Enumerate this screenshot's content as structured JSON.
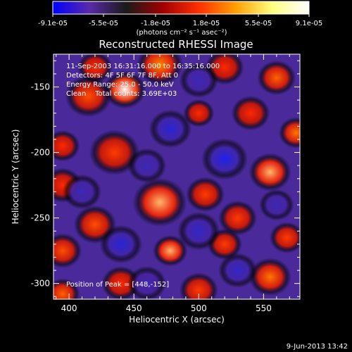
{
  "chart_data": {
    "type": "heatmap",
    "title": "Reconstructed RHESSI Image",
    "xlabel": "Heliocentric X (arcsec)",
    "ylabel": "Heliocentric Y (arcsec)",
    "xlim": [
      388,
      578
    ],
    "ylim": [
      -312,
      -125
    ],
    "x_ticks": [
      400,
      450,
      500,
      550
    ],
    "x_tick_labels": [
      "400",
      "450",
      "500",
      "550"
    ],
    "y_ticks": [
      -150,
      -200,
      -250,
      -300
    ],
    "y_tick_labels": [
      "-150",
      "-200",
      "-250",
      "-300"
    ],
    "colorbar": {
      "min": -9.1e-05,
      "max": 9.1e-05,
      "tick_labels": [
        "-9.1e-05",
        "-5.5e-05",
        "-1.8e-05",
        "1.8e-05",
        "5.5e-05",
        "9.1e-05"
      ],
      "tick_values": [
        -9.1e-05,
        -5.5e-05,
        -1.8e-05,
        1.8e-05,
        5.5e-05,
        9.1e-05
      ],
      "units_label": "(photons cm⁻² s⁻¹ asec⁻²)",
      "stops": [
        "#0000ff",
        "#5a2aa8",
        "#1a1a1a",
        "#a00000",
        "#ff3000",
        "#ffa000",
        "#ffff80",
        "#ffffff"
      ]
    },
    "annotations": {
      "time_range": "11-Sep-2003 16:31:16.000 to 16:35:16.000",
      "detectors": "Detectors: 4F 5F 6F 7F 8F, Att 0",
      "energy": "Energy Range: 25.0 - 50.0 keV",
      "clean": "Clean    Total counts: 3.69E+03",
      "peak": "Position of Peak = [448,-152]"
    },
    "peak": {
      "x": 448,
      "y": -152
    },
    "blobs": [
      {
        "x": 443,
        "y": -152,
        "v": 1.0,
        "s": 11
      },
      {
        "x": 415,
        "y": -157,
        "v": 0.6,
        "s": 12
      },
      {
        "x": 420,
        "y": -135,
        "v": 0.5,
        "s": 9
      },
      {
        "x": 470,
        "y": -133,
        "v": 0.75,
        "s": 12
      },
      {
        "x": 520,
        "y": -135,
        "v": 0.5,
        "s": 10
      },
      {
        "x": 560,
        "y": -143,
        "v": 0.65,
        "s": 10
      },
      {
        "x": 540,
        "y": -170,
        "v": 0.5,
        "s": 10
      },
      {
        "x": 575,
        "y": -185,
        "v": 0.7,
        "s": 9
      },
      {
        "x": 500,
        "y": -170,
        "v": 0.5,
        "s": 8
      },
      {
        "x": 435,
        "y": -200,
        "v": 0.55,
        "s": 13
      },
      {
        "x": 395,
        "y": -195,
        "v": 0.5,
        "s": 9
      },
      {
        "x": 555,
        "y": -215,
        "v": 0.85,
        "s": 11
      },
      {
        "x": 470,
        "y": -238,
        "v": 0.85,
        "s": 14
      },
      {
        "x": 505,
        "y": -232,
        "v": 0.55,
        "s": 10
      },
      {
        "x": 530,
        "y": -250,
        "v": 0.55,
        "s": 10
      },
      {
        "x": 568,
        "y": -265,
        "v": 0.55,
        "s": 9
      },
      {
        "x": 395,
        "y": -225,
        "v": 0.5,
        "s": 10
      },
      {
        "x": 420,
        "y": -255,
        "v": 0.6,
        "s": 11
      },
      {
        "x": 478,
        "y": -275,
        "v": 0.85,
        "s": 9
      },
      {
        "x": 520,
        "y": -270,
        "v": 0.55,
        "s": 9
      },
      {
        "x": 555,
        "y": -295,
        "v": 0.7,
        "s": 11
      },
      {
        "x": 395,
        "y": -275,
        "v": 0.6,
        "s": 10
      },
      {
        "x": 440,
        "y": -300,
        "v": 0.5,
        "s": 10
      },
      {
        "x": 395,
        "y": -308,
        "v": 0.65,
        "s": 9
      },
      {
        "x": 500,
        "y": -305,
        "v": 0.55,
        "s": 10
      },
      {
        "x": 478,
        "y": -182,
        "v": -0.8,
        "s": 11
      },
      {
        "x": 520,
        "y": -205,
        "v": -0.9,
        "s": 12
      },
      {
        "x": 500,
        "y": -145,
        "v": -0.6,
        "s": 10
      },
      {
        "x": 440,
        "y": -270,
        "v": -0.8,
        "s": 11
      },
      {
        "x": 500,
        "y": -260,
        "v": -0.7,
        "s": 11
      },
      {
        "x": 530,
        "y": -290,
        "v": -0.7,
        "s": 10
      },
      {
        "x": 410,
        "y": -230,
        "v": -0.6,
        "s": 10
      },
      {
        "x": 460,
        "y": -210,
        "v": -0.6,
        "s": 10
      },
      {
        "x": 560,
        "y": -240,
        "v": -0.6,
        "s": 9
      },
      {
        "x": 460,
        "y": -300,
        "v": -0.5,
        "s": 10
      }
    ]
  },
  "footer": {
    "date": "9-Jun-2013 13:42"
  }
}
